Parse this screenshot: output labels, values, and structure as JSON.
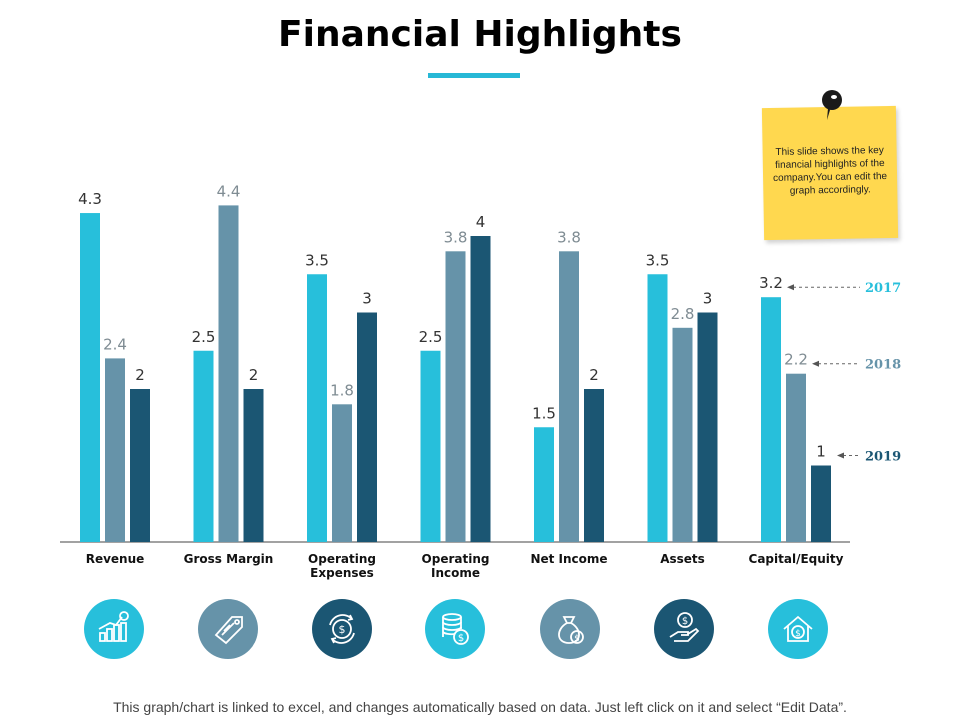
{
  "title": "Financial Highlights",
  "note": "This slide shows the key financial highlights of the company.You can edit the graph accordingly.",
  "footer": "This graph/chart is linked to excel, and changes automatically based on data.  Just left click on it and select “Edit Data”.",
  "colors": {
    "s2017": "#27bfdb",
    "s2018": "#6693a9",
    "s2019": "#1b5673"
  },
  "chart_data": {
    "type": "bar",
    "title": "Financial Highlights",
    "categories": [
      "Revenue",
      "Gross Margin",
      "Operating Expenses",
      "Operating Income",
      "Net Income",
      "Assets",
      "Capital/Equity"
    ],
    "series": [
      {
        "name": "2017",
        "values": [
          4.3,
          2.5,
          3.5,
          2.5,
          1.5,
          3.5,
          3.2
        ]
      },
      {
        "name": "2018",
        "values": [
          2.4,
          4.4,
          1.8,
          3.8,
          3.8,
          2.8,
          2.2
        ]
      },
      {
        "name": "2019",
        "values": [
          2,
          2,
          3,
          4,
          2,
          3,
          1
        ]
      }
    ],
    "ylim": [
      0,
      5.4
    ],
    "grid": false,
    "legend": "right"
  },
  "icons": [
    "growth-chart-icon",
    "price-tag-icon",
    "currency-cycle-icon",
    "coin-stack-icon",
    "money-bag-icon",
    "hand-coin-icon",
    "house-dollar-icon"
  ]
}
